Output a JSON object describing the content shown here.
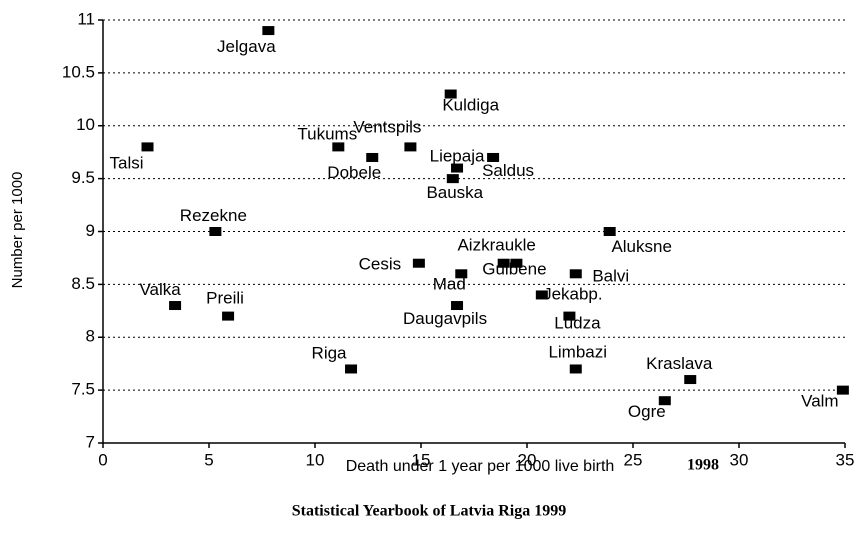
{
  "chart_data": {
    "type": "scatter",
    "x_label": "Death under 1 year per 1000 live birth",
    "year": "1998",
    "y_label": "Number per 1000",
    "source": "Statistical Yearbook of Latvia  Riga 1999",
    "labels": [
      "Jelgava",
      "Kuldiga",
      "Talsi",
      "Tukums",
      "Ventspils",
      "Dobele",
      "Liepaja",
      "Saldus",
      "Bauska",
      "Rezekne",
      "Aluksne",
      "Cesis",
      "Aizkraukle",
      "Gulbene",
      "Mad",
      "Balvi",
      "Jekabp.",
      "Valka",
      "Daugavpils",
      "Preili",
      "Ludza",
      "Riga",
      "Limbazi",
      "Kraslava",
      "Ogre",
      "Valm"
    ],
    "x": [
      7.8,
      16.4,
      2.1,
      11.1,
      14.5,
      12.7,
      16.7,
      18.4,
      16.5,
      5.3,
      23.9,
      14.9,
      18.9,
      19.5,
      16.9,
      22.3,
      20.7,
      3.4,
      16.7,
      5.9,
      22.0,
      11.7,
      22.3,
      27.7,
      26.5,
      34.9
    ],
    "y": [
      10.9,
      10.3,
      9.8,
      9.8,
      9.8,
      9.7,
      9.6,
      9.7,
      9.5,
      9.0,
      9.0,
      8.7,
      8.7,
      8.7,
      8.6,
      8.6,
      8.4,
      8.3,
      8.3,
      8.2,
      8.2,
      7.7,
      7.7,
      7.6,
      7.4,
      7.5
    ],
    "color": "#000000",
    "xlim": [
      0,
      35
    ],
    "xticks": [
      0,
      5,
      10,
      15,
      20,
      25,
      30,
      35
    ],
    "ylim": [
      7,
      11
    ],
    "yticks": [
      7,
      7.5,
      8,
      8.5,
      9,
      9.5,
      10,
      10.5,
      11
    ],
    "grid": true
  }
}
